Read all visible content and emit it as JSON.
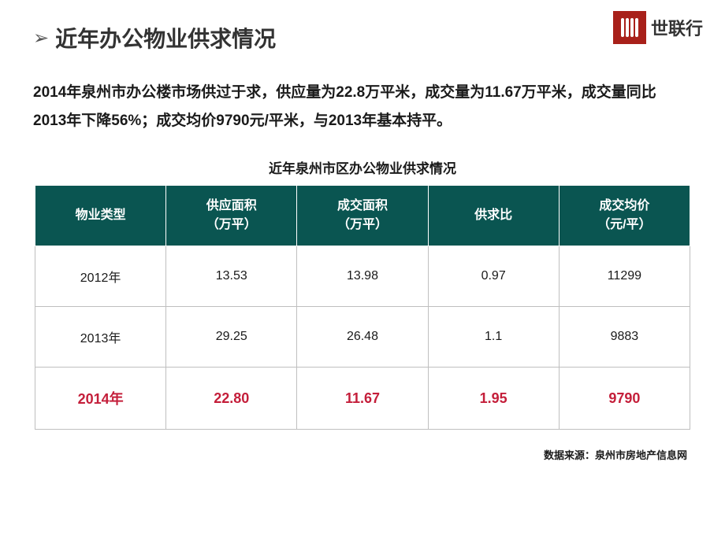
{
  "header": {
    "arrow": "➢",
    "title": "近年办公物业供求情况"
  },
  "logo": {
    "text": "世联行"
  },
  "description": "2014年泉州市办公楼市场供过于求，供应量为22.8万平米，成交量为11.67万平米，成交量同比2013年下降56%；成交均价9790元/平米，与2013年基本持平。",
  "table": {
    "title": "近年泉州市区办公物业供求情况",
    "columns": [
      "物业类型",
      "供应面积\n（万平）",
      "成交面积\n（万平）",
      "供求比",
      "成交均价\n（元/平）"
    ],
    "rows": [
      {
        "cells": [
          "2012年",
          "13.53",
          "13.98",
          "0.97",
          "11299"
        ],
        "highlight": false
      },
      {
        "cells": [
          "2013年",
          "29.25",
          "26.48",
          "1.1",
          "9883"
        ],
        "highlight": false
      },
      {
        "cells": [
          "2014年",
          "22.80",
          "11.67",
          "1.95",
          "9790"
        ],
        "highlight": true
      }
    ],
    "header_bg": "#0a5551",
    "header_text_color": "#ffffff",
    "cell_border_color": "#bfbfbf",
    "highlight_color": "#c41e3a"
  },
  "source": "数据来源：泉州市房地产信息网"
}
